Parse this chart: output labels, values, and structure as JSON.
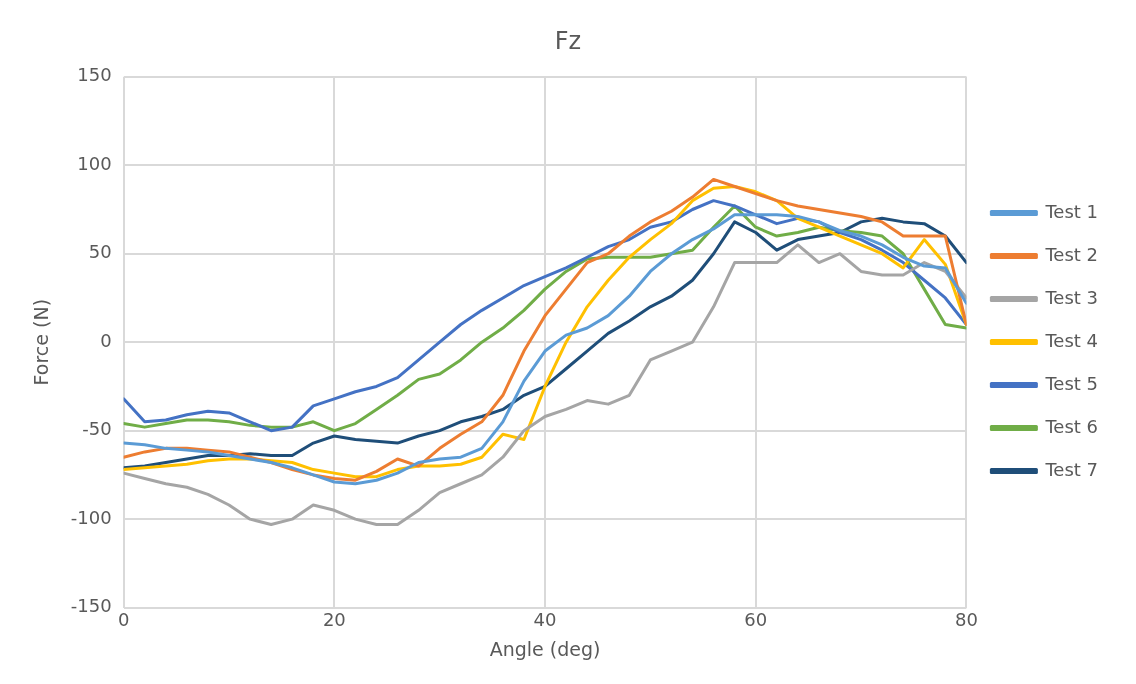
{
  "chart_data": {
    "type": "line",
    "title": "Fz",
    "xlabel": "Angle (deg)",
    "ylabel": "Force (N)",
    "x": [
      0,
      2,
      4,
      6,
      8,
      10,
      12,
      14,
      16,
      18,
      20,
      22,
      24,
      26,
      28,
      30,
      32,
      34,
      36,
      38,
      40,
      42,
      44,
      46,
      48,
      50,
      52,
      54,
      56,
      58,
      60,
      62,
      64,
      66,
      68,
      70,
      72,
      74,
      76,
      78,
      80
    ],
    "xlim": [
      0,
      80
    ],
    "xticks": [
      0,
      20,
      40,
      60,
      80
    ],
    "ylim": [
      -150,
      150
    ],
    "yticks": [
      -150,
      -100,
      -50,
      0,
      50,
      100,
      150
    ],
    "grid": true,
    "legend": "right",
    "marker": "none",
    "line_style": "solid",
    "series": [
      {
        "name": "Test 1",
        "color": "#5b9bd5",
        "values": [
          -57,
          -58,
          -60,
          -61,
          -62,
          -64,
          -66,
          -68,
          -71,
          -75,
          -79,
          -80,
          -78,
          -74,
          -68,
          -66,
          -65,
          -60,
          -45,
          -22,
          -5,
          4,
          8,
          15,
          26,
          40,
          50,
          58,
          64,
          72,
          72,
          72,
          71,
          68,
          63,
          60,
          55,
          48,
          43,
          42,
          22
        ]
      },
      {
        "name": "Test 2",
        "color": "#ed7d31",
        "values": [
          -65,
          -62,
          -60,
          -60,
          -61,
          -62,
          -65,
          -68,
          -72,
          -75,
          -77,
          -78,
          -73,
          -66,
          -70,
          -60,
          -52,
          -45,
          -30,
          -5,
          15,
          30,
          45,
          50,
          60,
          68,
          74,
          82,
          92,
          88,
          84,
          80,
          77,
          75,
          73,
          71,
          68,
          60,
          60,
          60,
          10
        ]
      },
      {
        "name": "Test 3",
        "color": "#a5a5a5",
        "values": [
          -74,
          -77,
          -80,
          -82,
          -86,
          -92,
          -100,
          -103,
          -100,
          -92,
          -95,
          -100,
          -103,
          -103,
          -95,
          -85,
          -80,
          -75,
          -65,
          -50,
          -42,
          -38,
          -33,
          -35,
          -30,
          -10,
          -5,
          0,
          20,
          45,
          45,
          45,
          55,
          45,
          50,
          40,
          38,
          38,
          45,
          40,
          25
        ]
      },
      {
        "name": "Test 4",
        "color": "#ffc000",
        "values": [
          -72,
          -71,
          -70,
          -69,
          -67,
          -66,
          -66,
          -67,
          -68,
          -72,
          -74,
          -76,
          -76,
          -72,
          -70,
          -70,
          -69,
          -65,
          -52,
          -55,
          -25,
          0,
          20,
          35,
          48,
          58,
          67,
          80,
          87,
          88,
          85,
          80,
          70,
          65,
          60,
          55,
          50,
          42,
          58,
          44,
          10
        ]
      },
      {
        "name": "Test 5",
        "color": "#4472c4",
        "values": [
          -32,
          -45,
          -44,
          -41,
          -39,
          -40,
          -45,
          -50,
          -48,
          -36,
          -32,
          -28,
          -25,
          -20,
          -10,
          0,
          10,
          18,
          25,
          32,
          37,
          42,
          48,
          54,
          58,
          65,
          68,
          75,
          80,
          77,
          72,
          67,
          70,
          68,
          62,
          58,
          52,
          45,
          35,
          25,
          10
        ]
      },
      {
        "name": "Test 6",
        "color": "#70ad47",
        "values": [
          -46,
          -48,
          -46,
          -44,
          -44,
          -45,
          -47,
          -48,
          -48,
          -45,
          -50,
          -46,
          -38,
          -30,
          -21,
          -18,
          -10,
          0,
          8,
          18,
          30,
          40,
          47,
          48,
          48,
          48,
          50,
          52,
          65,
          77,
          65,
          60,
          62,
          65,
          63,
          62,
          60,
          50,
          30,
          10,
          8
        ]
      },
      {
        "name": "Test 7",
        "color": "#1f4e79",
        "values": [
          -71,
          -70,
          -68,
          -66,
          -64,
          -64,
          -63,
          -64,
          -64,
          -57,
          -53,
          -55,
          -56,
          -57,
          -53,
          -50,
          -45,
          -42,
          -38,
          -30,
          -25,
          -15,
          -5,
          5,
          12,
          20,
          26,
          35,
          50,
          68,
          62,
          52,
          58,
          60,
          62,
          68,
          70,
          68,
          67,
          60,
          45
        ]
      }
    ]
  }
}
